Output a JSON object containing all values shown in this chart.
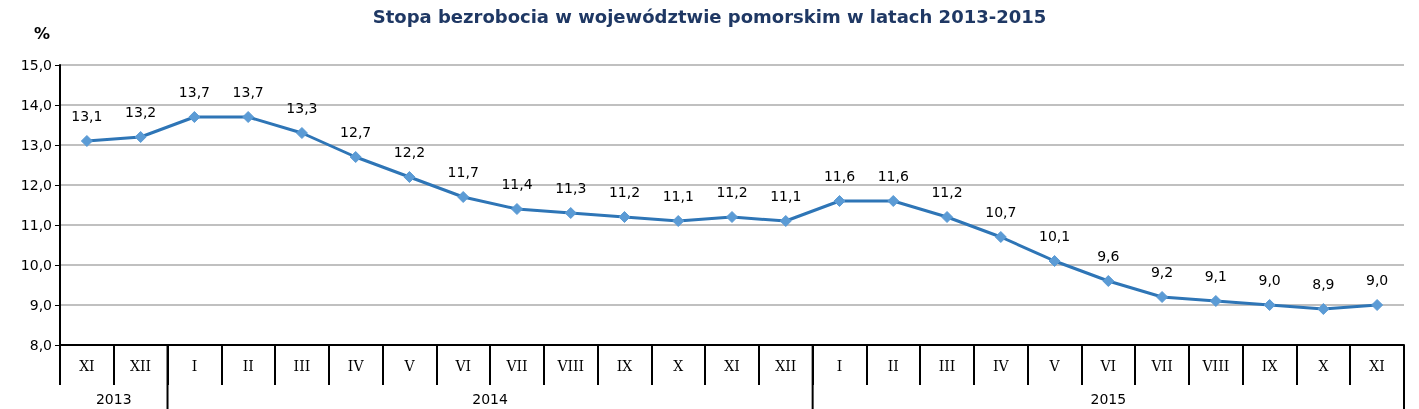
{
  "chart_data": {
    "type": "line",
    "title": "Stopa bezrobocia w województwie pomorskim w latach 2013-2015",
    "ylabel": "%",
    "categories": [
      "XI",
      "XII",
      "I",
      "II",
      "III",
      "IV",
      "V",
      "VI",
      "VII",
      "VIII",
      "IX",
      "X",
      "XI",
      "XII",
      "I",
      "II",
      "III",
      "IV",
      "V",
      "VI",
      "VII",
      "VIII",
      "IX",
      "X",
      "XI"
    ],
    "series": [
      {
        "color": "#2e75b6",
        "values": [
          13.1,
          13.2,
          13.7,
          13.7,
          13.3,
          12.7,
          12.2,
          11.7,
          11.4,
          11.3,
          11.2,
          11.1,
          11.2,
          11.1,
          11.6,
          11.6,
          11.2,
          10.7,
          10.1,
          9.6,
          9.2,
          9.1,
          9.0,
          8.9,
          9.0
        ],
        "value_labels": [
          "13,1",
          "13,2",
          "13,7",
          "13,7",
          "13,3",
          "12,7",
          "12,2",
          "11,7",
          "11,4",
          "11,3",
          "11,2",
          "11,1",
          "11,2",
          "11,1",
          "11,6",
          "11,6",
          "11,2",
          "10,7",
          "10,1",
          "9,6",
          "9,2",
          "9,1",
          "9,0",
          "8,9",
          "9,0"
        ]
      }
    ],
    "ylim": [
      8,
      15
    ],
    "yticks": [
      {
        "value": 8,
        "label": "8,0"
      },
      {
        "value": 9,
        "label": "9,0"
      },
      {
        "value": 10,
        "label": "10,0"
      },
      {
        "value": 11,
        "label": "11,0"
      },
      {
        "value": 12,
        "label": "12,0"
      },
      {
        "value": 13,
        "label": "13,0"
      },
      {
        "value": 14,
        "label": "14,0"
      },
      {
        "value": 15,
        "label": "15,0"
      }
    ],
    "annotations": [
      "2013",
      "2014",
      "2015"
    ],
    "grid": "y",
    "marker": "diamond",
    "line_style": "solid"
  }
}
